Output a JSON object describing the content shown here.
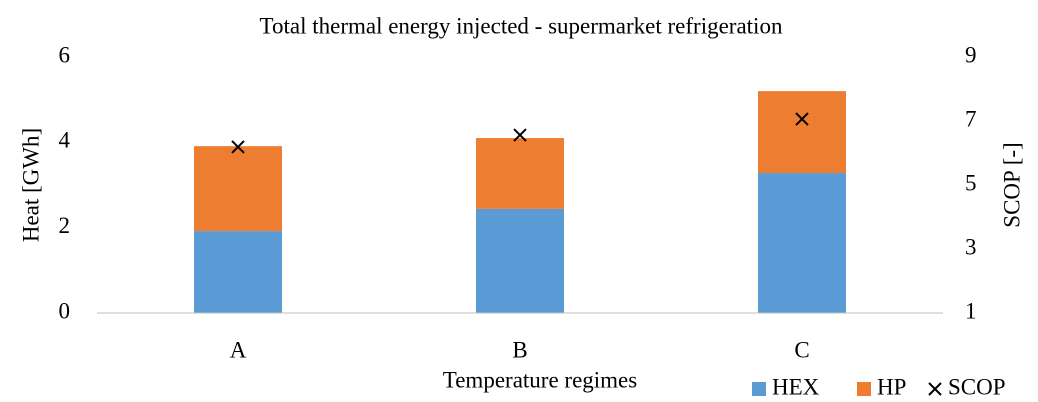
{
  "chart_data": {
    "type": "bar",
    "stacked": true,
    "title": "Total thermal energy injected - supermarket refrigeration",
    "xlabel": "Temperature regimes",
    "ylabel": "Heat [GWh]",
    "y2label": "SCOP [-]",
    "categories": [
      "A",
      "B",
      "C"
    ],
    "series": [
      {
        "name": "HEX",
        "color": "#5b9bd5",
        "values": [
          1.92,
          2.44,
          3.28
        ]
      },
      {
        "name": "HP",
        "color": "#ed7d31",
        "values": [
          1.99,
          1.66,
          1.92
        ]
      },
      {
        "name": "SCOP",
        "color": "#000000",
        "axis": "y2",
        "marker": "x",
        "values": [
          6.19,
          6.56,
          7.06
        ]
      }
    ],
    "ylim": [
      0,
      6
    ],
    "yticks": [
      0,
      2,
      4,
      6
    ],
    "y2lim": [
      1,
      9
    ],
    "y2ticks": [
      1,
      3,
      5,
      7,
      9
    ],
    "grid": false,
    "legend": "bottom-right"
  }
}
